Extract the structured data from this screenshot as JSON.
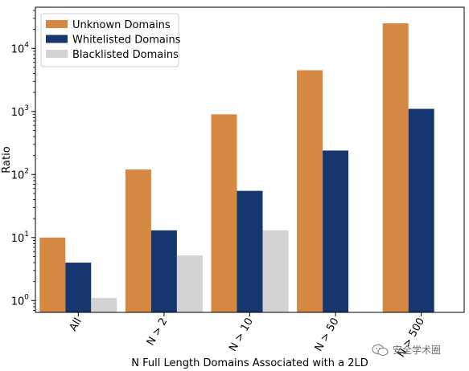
{
  "chart_data": {
    "type": "bar",
    "yscale": "log",
    "xlabel": "N Full Length Domains Associated with a 2LD",
    "ylabel": "Ratio",
    "categories": [
      "All",
      "N > 2",
      "N > 10",
      "N > 50",
      "N > 500"
    ],
    "ytick_exponents": [
      0,
      1,
      2,
      3,
      4
    ],
    "ylim": [
      0.65,
      45000
    ],
    "legend_position": "top-left",
    "grid": false,
    "series": [
      {
        "name": "Unknown Domains",
        "color": "#d48841",
        "values": [
          10,
          120,
          900,
          4500,
          25000
        ]
      },
      {
        "name": "Whitelisted Domains",
        "color": "#163670",
        "values": [
          4,
          13,
          55,
          240,
          1100
        ]
      },
      {
        "name": "Blacklisted Domains",
        "color": "#d3d3d3",
        "values": [
          1.1,
          5.2,
          13,
          null,
          null
        ]
      }
    ]
  },
  "watermark": {
    "text": "安全学术圈",
    "icon": "wechat-icon"
  }
}
